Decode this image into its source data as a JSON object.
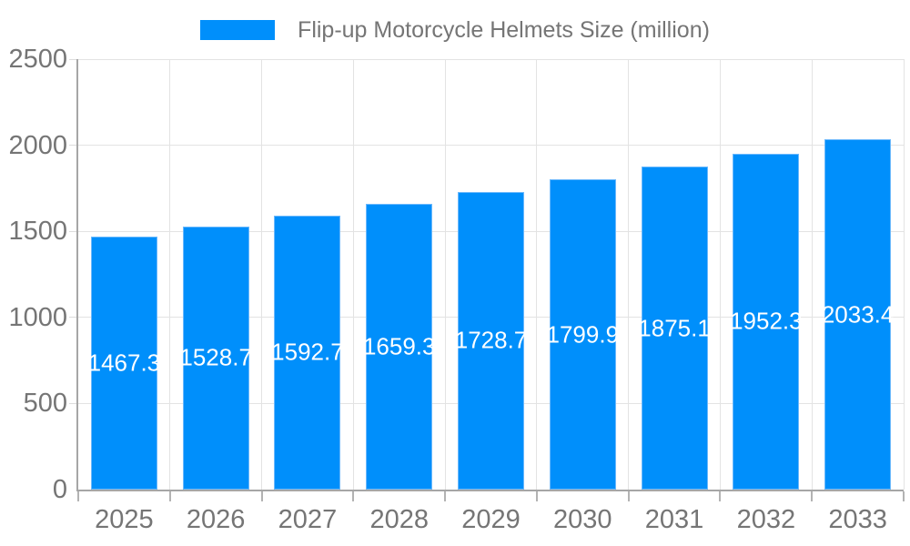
{
  "chart_data": {
    "type": "bar",
    "title": "Flip-up Motorcycle Helmets Size (million)",
    "categories": [
      "2025",
      "2026",
      "2027",
      "2028",
      "2029",
      "2030",
      "2031",
      "2032",
      "2033"
    ],
    "series": [
      {
        "name": "Flip-up Motorcycle Helmets Size (million)",
        "values": [
          1467.3,
          1528.7,
          1592.7,
          1659.3,
          1728.7,
          1799.9,
          1875.1,
          1952.3,
          2033.4
        ]
      }
    ],
    "value_labels": [
      "1467.3",
      "1528.7",
      "1592.7",
      "1659.3",
      "1728.7",
      "1799.9",
      "1875.1",
      "1952.3",
      "2033.4"
    ],
    "xlabel": "",
    "ylabel": "",
    "ylim": [
      0,
      2500
    ],
    "yticks": [
      0,
      500,
      1000,
      1500,
      2000,
      2500
    ],
    "grid": "on",
    "legend_position": "top-center",
    "colors": {
      "bar": "#008FFB",
      "bar_value_text": "#FFFFFF",
      "axis_text": "#757575",
      "gridline": "#E3E3E3",
      "axis_line": "#A6A6A6"
    }
  }
}
